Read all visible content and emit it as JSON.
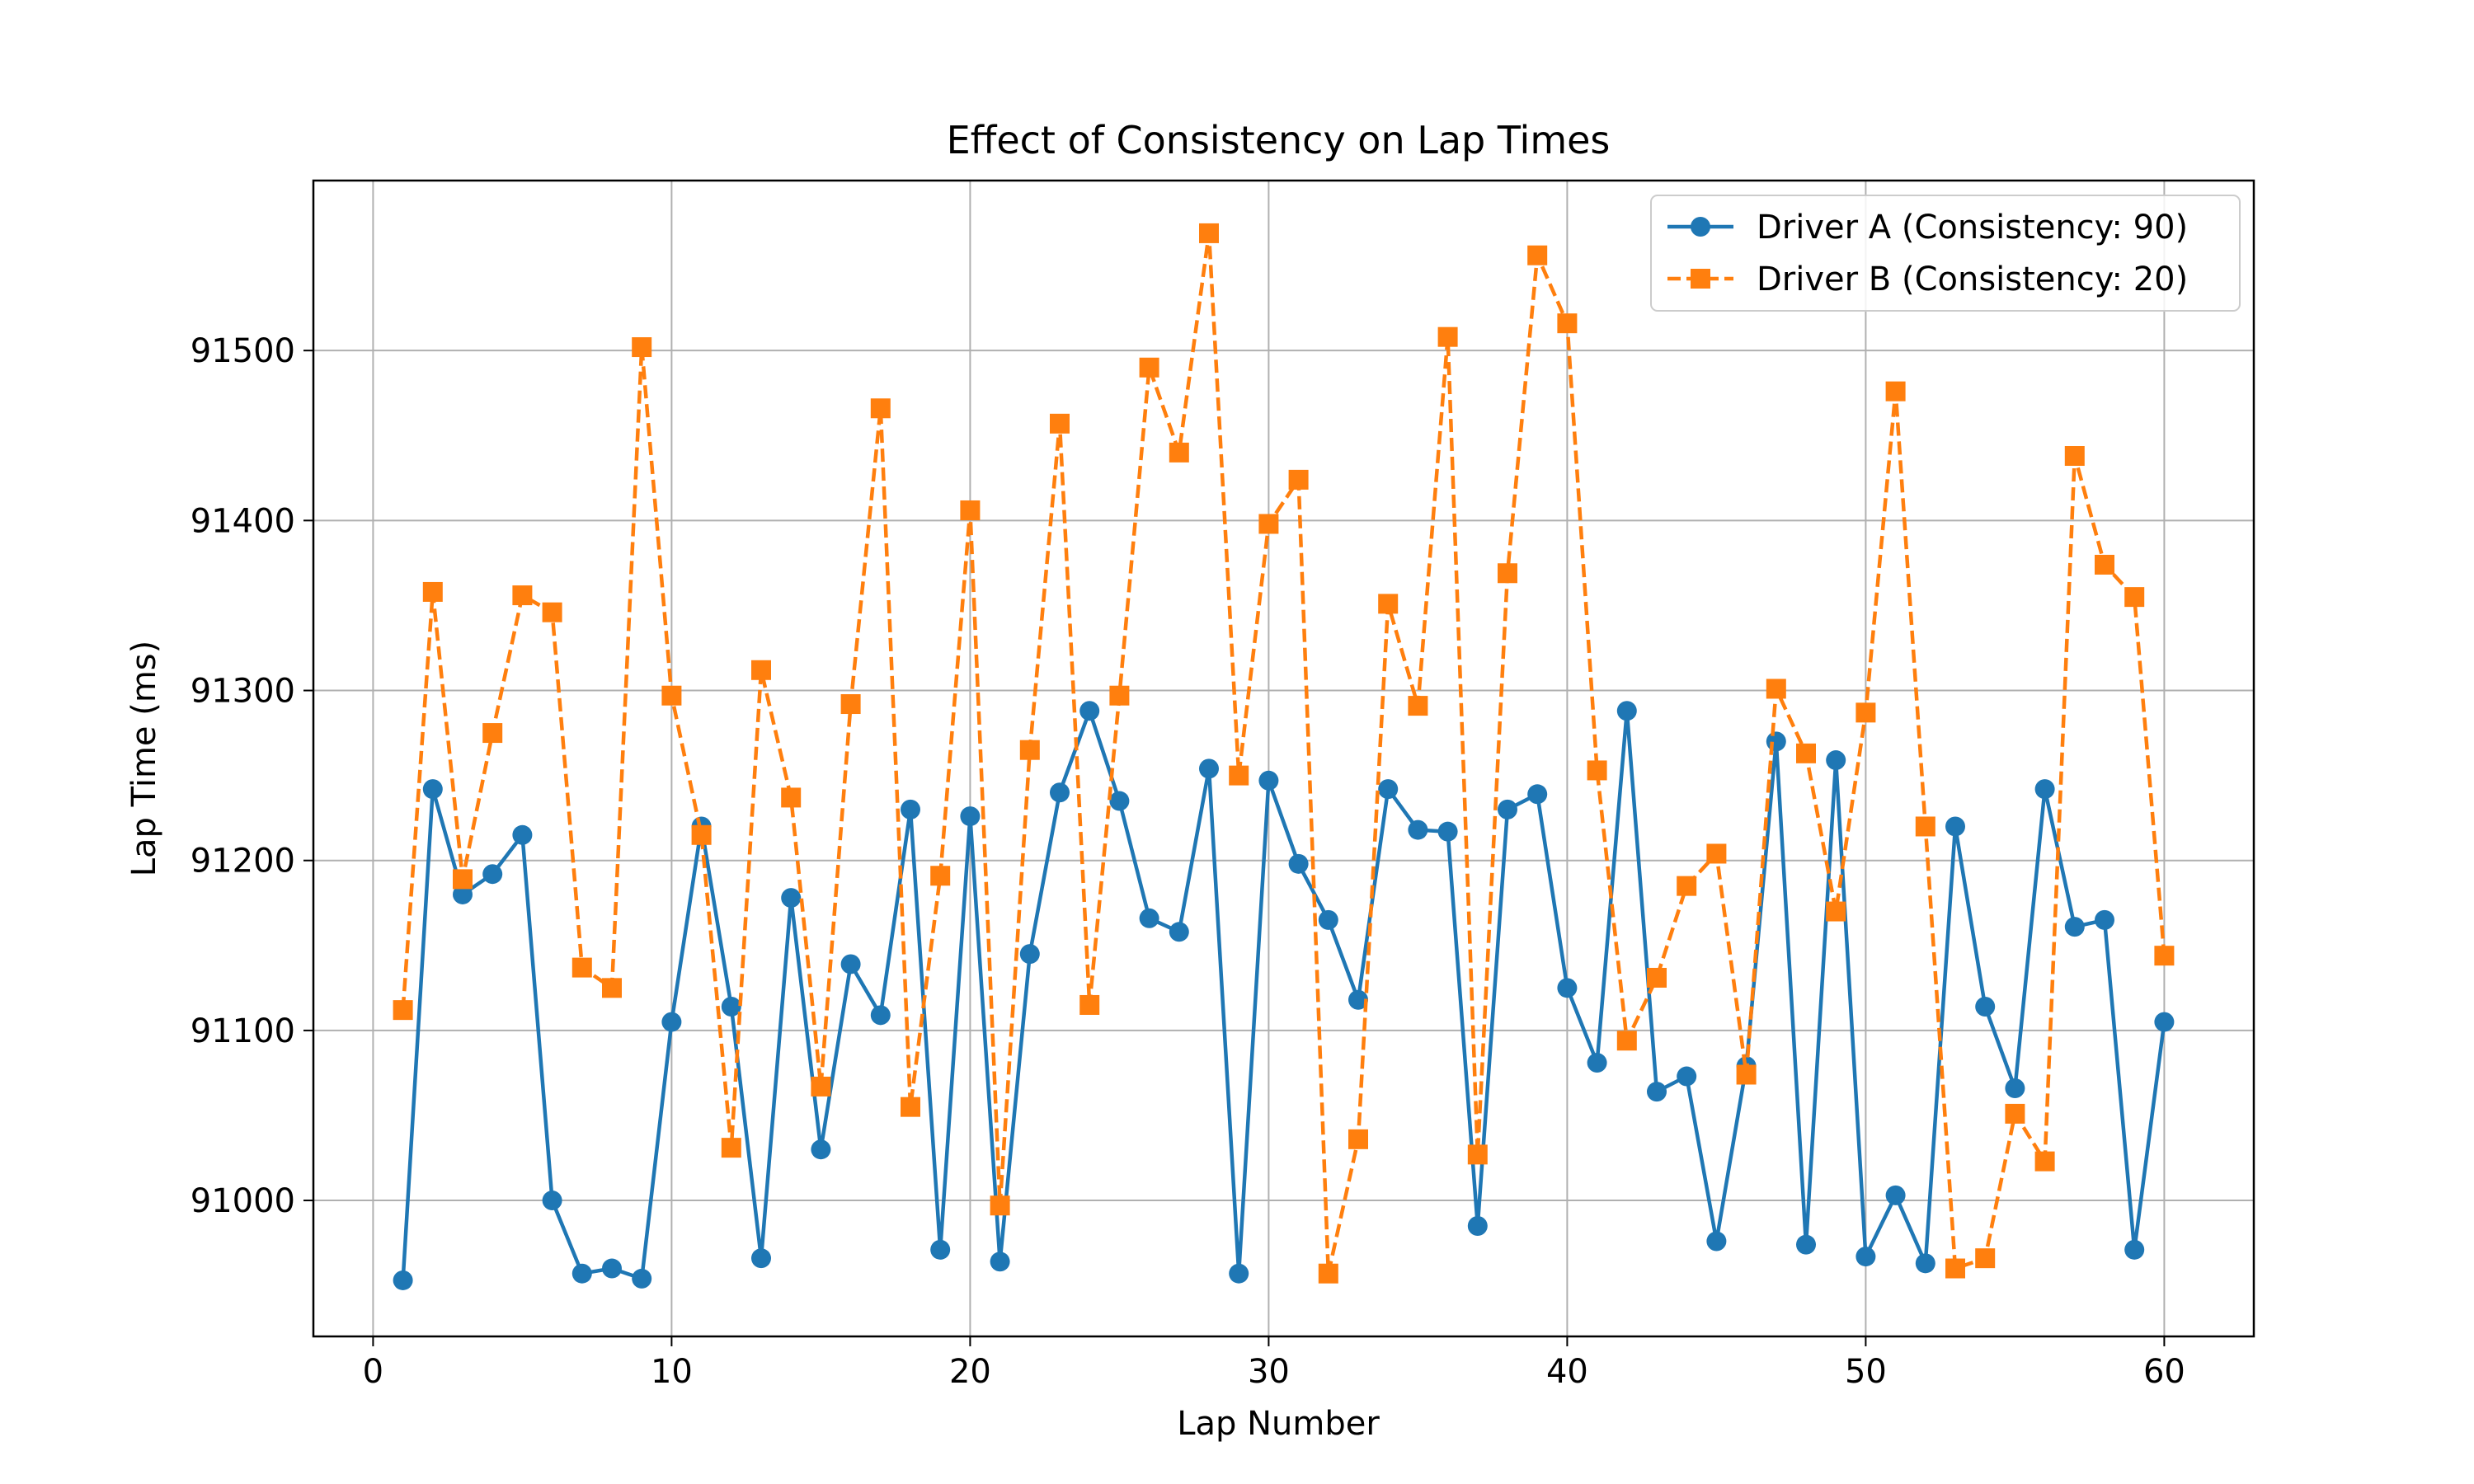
{
  "chart_data": {
    "type": "line",
    "title": "Effect of Consistency on Lap Times",
    "xlabel": "Lap Number",
    "ylabel": "Lap Time (ms)",
    "xlim": [
      -2,
      63
    ],
    "ylim": [
      90920,
      91600
    ],
    "x_ticks": [
      0,
      10,
      20,
      30,
      40,
      50,
      60
    ],
    "y_ticks": [
      91000,
      91100,
      91200,
      91300,
      91400,
      91500
    ],
    "grid": true,
    "legend_position": "top-right",
    "x": [
      1,
      2,
      3,
      4,
      5,
      6,
      7,
      8,
      9,
      10,
      11,
      12,
      13,
      14,
      15,
      16,
      17,
      18,
      19,
      20,
      21,
      22,
      23,
      24,
      25,
      26,
      27,
      28,
      29,
      30,
      31,
      32,
      33,
      34,
      35,
      36,
      37,
      38,
      39,
      40,
      41,
      42,
      43,
      44,
      45,
      46,
      47,
      48,
      49,
      50,
      51,
      52,
      53,
      54,
      55,
      56,
      57,
      58,
      59,
      60
    ],
    "series": [
      {
        "name": "Driver A (Consistency: 90)",
        "color": "#1f77b4",
        "line_style": "solid",
        "marker": "circle",
        "values": [
          90953,
          91242,
          91180,
          91192,
          91215,
          91000,
          90957,
          90960,
          90954,
          91105,
          91220,
          91114,
          90966,
          91178,
          91030,
          91139,
          91109,
          91230,
          90971,
          91226,
          90964,
          91145,
          91240,
          91288,
          91235,
          91166,
          91158,
          91254,
          90957,
          91247,
          91198,
          91165,
          91118,
          91242,
          91218,
          91217,
          90985,
          91230,
          91239,
          91125,
          91081,
          91288,
          91064,
          91073,
          90976,
          91079,
          91270,
          90974,
          91259,
          90967,
          91003,
          90963,
          91220,
          91114,
          91066,
          91242,
          91161,
          91165,
          90971,
          91105
        ]
      },
      {
        "name": "Driver B (Consistency: 20)",
        "color": "#ff7f0e",
        "line_style": "dashed",
        "marker": "square",
        "values": [
          91112,
          91358,
          91189,
          91275,
          91356,
          91346,
          91137,
          91125,
          91502,
          91297,
          91215,
          91031,
          91312,
          91237,
          91067,
          91292,
          91466,
          91055,
          91191,
          91406,
          90997,
          91265,
          91457,
          91115,
          91297,
          91490,
          91440,
          91569,
          91250,
          91398,
          91424,
          90957,
          91036,
          91351,
          91291,
          91508,
          91027,
          91369,
          91556,
          91516,
          91253,
          91094,
          91131,
          91185,
          91204,
          91074,
          91301,
          91263,
          91170,
          91287,
          91476,
          91220,
          90960,
          90966,
          91051,
          91023,
          91438,
          91374,
          91355,
          91144
        ]
      }
    ]
  }
}
